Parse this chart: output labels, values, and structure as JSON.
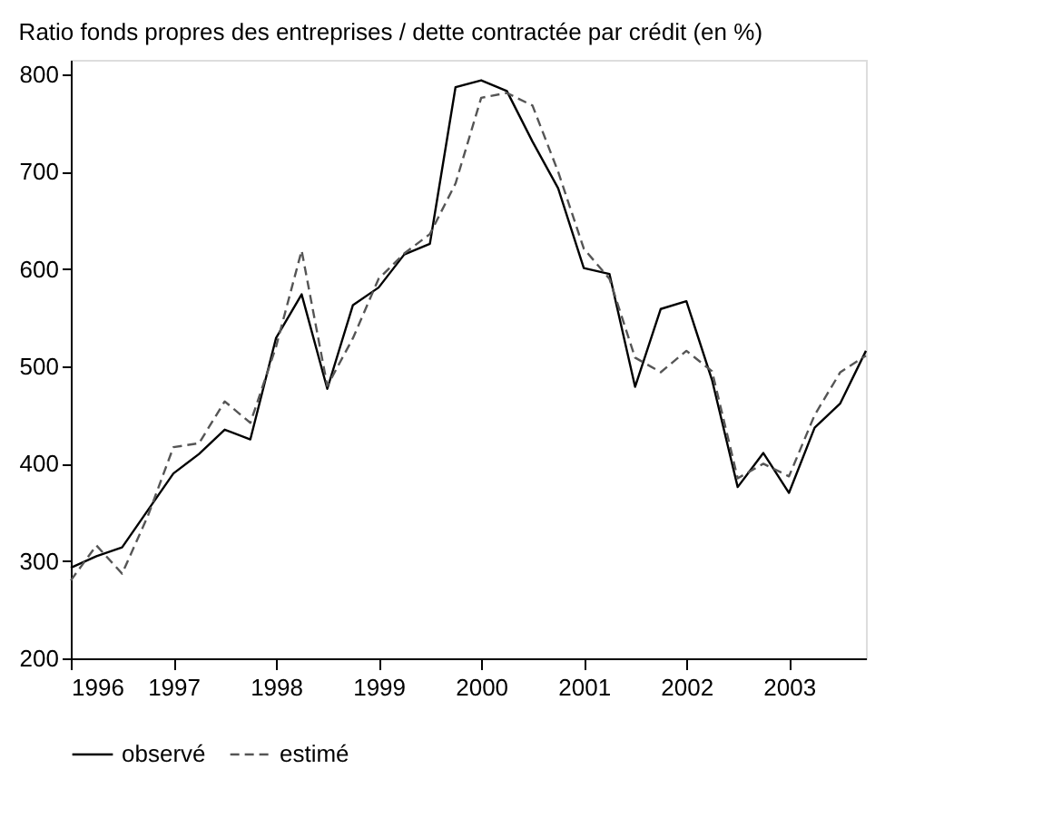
{
  "chart_data": {
    "type": "line",
    "title": "Ratio fonds propres des entreprises / dette contractée par crédit (en %)",
    "x": [
      1996,
      1996.25,
      1996.5,
      1996.75,
      1997,
      1997.25,
      1997.5,
      1997.75,
      1998,
      1998.25,
      1998.5,
      1998.75,
      1999,
      1999.25,
      1999.5,
      1999.75,
      2000,
      2000.25,
      2000.5,
      2000.75,
      2001,
      2001.25,
      2001.5,
      2001.75,
      2002,
      2002.25,
      2002.5,
      2002.75,
      2003,
      2003.25,
      2003.5,
      2003.75
    ],
    "series": [
      {
        "name": "observé",
        "color": "#000000",
        "line_style": "solid",
        "values": [
          293,
          305,
          314,
          352,
          390,
          410,
          435,
          425,
          529,
          574,
          477,
          563,
          581,
          615,
          626,
          787,
          794,
          783,
          731,
          683,
          601,
          595,
          479,
          559,
          567,
          486,
          376,
          411,
          370,
          437,
          462,
          516
        ]
      },
      {
        "name": "estimé",
        "color": "#555555",
        "line_style": "dashed",
        "values": [
          280,
          316,
          287,
          346,
          417,
          421,
          464,
          442,
          520,
          619,
          480,
          529,
          590,
          616,
          636,
          688,
          776,
          781,
          768,
          700,
          621,
          590,
          509,
          494,
          516,
          495,
          385,
          400,
          387,
          450,
          494,
          511
        ]
      }
    ],
    "xlim": [
      1996,
      2003.75
    ],
    "xticks": [
      1996,
      1997,
      1998,
      1999,
      2000,
      2001,
      2002,
      2003
    ],
    "ylim": [
      200,
      815
    ],
    "yticks": [
      200,
      300,
      400,
      500,
      600,
      700,
      800
    ],
    "grid": false,
    "legend": "bottom",
    "marker": "none"
  }
}
